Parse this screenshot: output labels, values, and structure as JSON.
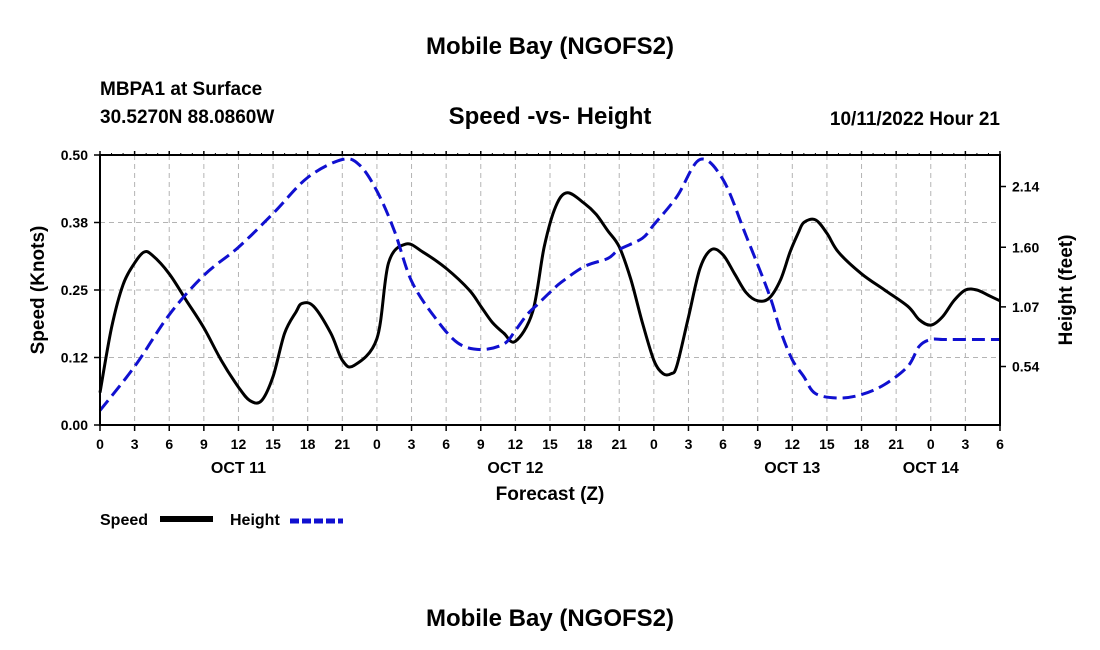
{
  "header": {
    "title": "Mobile Bay (NGOFS2)",
    "station": "MBPA1 at Surface",
    "coords": "30.5270N  88.0860W",
    "plot_title": "Speed -vs- Height",
    "timestamp": "10/11/2022 Hour 21",
    "footer_title": "Mobile Bay (NGOFS2)"
  },
  "colors": {
    "speed": "#000000",
    "height": "#1010d0",
    "grid": "#b4b4b4"
  },
  "chart_data": {
    "type": "line",
    "title": "Speed -vs- Height",
    "xlabel": "Forecast (Z)",
    "ylabel_left": "Speed (Knots)",
    "ylabel_right": "Height (feet)",
    "x_unit": "hours from 10/11/2022 00Z",
    "xlim": [
      0,
      78
    ],
    "ylim_left": [
      0,
      0.5
    ],
    "ylim_right": [
      0.02,
      2.42
    ],
    "left_ticks": [
      "0.00",
      "0.12",
      "0.25",
      "0.38",
      "0.50"
    ],
    "left_tick_values": [
      0,
      0.125,
      0.25,
      0.375,
      0.5
    ],
    "right_ticks": [
      "0.54",
      "1.07",
      "1.60",
      "2.14"
    ],
    "right_tick_values": [
      0.54,
      1.07,
      1.6,
      2.14
    ],
    "x_ticks": [
      "0",
      "3",
      "6",
      "9",
      "12",
      "15",
      "18",
      "21",
      "0",
      "3",
      "6",
      "9",
      "12",
      "15",
      "18",
      "21",
      "0",
      "3",
      "6",
      "9",
      "12",
      "15",
      "18",
      "21",
      "0",
      "3",
      "6"
    ],
    "x_tick_values": [
      0,
      3,
      6,
      9,
      12,
      15,
      18,
      21,
      24,
      27,
      30,
      33,
      36,
      39,
      42,
      45,
      48,
      51,
      54,
      57,
      60,
      63,
      66,
      69,
      72,
      75,
      78
    ],
    "date_labels": [
      {
        "text": "OCT 11",
        "x": 12
      },
      {
        "text": "OCT 12",
        "x": 36
      },
      {
        "text": "OCT 13",
        "x": 60
      },
      {
        "text": "OCT 14",
        "x": 72
      }
    ],
    "grid": true,
    "legend_position": "bottom-left",
    "series": [
      {
        "name": "Speed",
        "axis": "left",
        "style": "solid",
        "x": [
          0,
          1,
          2,
          3,
          3.8,
          4.5,
          6,
          7.5,
          9,
          10.5,
          12,
          13,
          14,
          15,
          16,
          17,
          17.5,
          18.5,
          20,
          21,
          22,
          24,
          25,
          26.5,
          28,
          30,
          32,
          33,
          34,
          35,
          36,
          37.5,
          38.5,
          39.5,
          40.5,
          42,
          43,
          44,
          45,
          46,
          47,
          48,
          48.8,
          49.5,
          50,
          51,
          52,
          53,
          54,
          55,
          56,
          57,
          58,
          59,
          59.8,
          60.5,
          61,
          62,
          63,
          64,
          66,
          68,
          70,
          71,
          72,
          73,
          74,
          75,
          76,
          77,
          78
        ],
        "y": [
          0.06,
          0.18,
          0.26,
          0.3,
          0.32,
          0.315,
          0.28,
          0.23,
          0.18,
          0.12,
          0.07,
          0.045,
          0.045,
          0.09,
          0.17,
          0.21,
          0.225,
          0.22,
          0.17,
          0.12,
          0.11,
          0.16,
          0.3,
          0.335,
          0.32,
          0.29,
          0.25,
          0.22,
          0.19,
          0.17,
          0.155,
          0.21,
          0.33,
          0.405,
          0.43,
          0.41,
          0.39,
          0.36,
          0.33,
          0.27,
          0.19,
          0.12,
          0.095,
          0.095,
          0.11,
          0.2,
          0.29,
          0.325,
          0.315,
          0.28,
          0.245,
          0.23,
          0.235,
          0.27,
          0.32,
          0.355,
          0.375,
          0.38,
          0.355,
          0.32,
          0.28,
          0.25,
          0.22,
          0.195,
          0.185,
          0.2,
          0.23,
          0.25,
          0.25,
          0.24,
          0.23
        ]
      },
      {
        "name": "Height",
        "axis": "right",
        "style": "dashed",
        "x": [
          0,
          3,
          6,
          9,
          12,
          15,
          18,
          21,
          22.5,
          24,
          25.5,
          27,
          29,
          31,
          33,
          35,
          36,
          37,
          38,
          39,
          40,
          42,
          44,
          45,
          47,
          48,
          50,
          52,
          54,
          56,
          58,
          59,
          60,
          61,
          62,
          64,
          66,
          68,
          70,
          71,
          72,
          73,
          74,
          76,
          78
        ],
        "y": [
          0.15,
          0.54,
          1.0,
          1.35,
          1.6,
          1.9,
          2.22,
          2.38,
          2.33,
          2.1,
          1.75,
          1.3,
          0.98,
          0.75,
          0.69,
          0.74,
          0.86,
          1.0,
          1.1,
          1.2,
          1.29,
          1.43,
          1.5,
          1.58,
          1.68,
          1.8,
          2.05,
          2.38,
          2.2,
          1.7,
          1.18,
          0.85,
          0.6,
          0.45,
          0.3,
          0.26,
          0.29,
          0.38,
          0.54,
          0.72,
          0.78,
          0.78,
          0.78,
          0.78,
          0.78
        ]
      }
    ]
  },
  "legend": {
    "speed_label": "Speed",
    "height_label": "Height"
  }
}
